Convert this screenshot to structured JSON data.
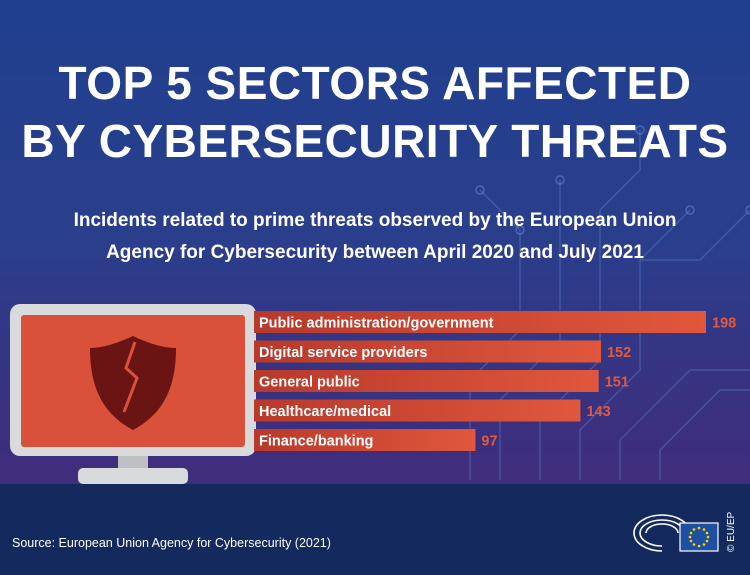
{
  "title_line1": "TOP 5 SECTORS AFFECTED",
  "title_line2": "BY CYBERSECURITY THREATS",
  "subtitle_line1": "Incidents related to prime threats observed by the European Union",
  "subtitle_line2": "Agency for Cybersecurity between April 2020 and July 2021",
  "source": "Source: European Union Agency for Cybersecurity (2021)",
  "credit": "© EU/EP",
  "icons": {
    "monitor": "computer-monitor-icon",
    "shield": "broken-shield-icon",
    "logo": "european-parliament-logo-icon"
  },
  "colors": {
    "bar": "#d9513a",
    "bar_dark": "#c0412e",
    "value_label": "#e05a3e",
    "background": "#253f8c"
  },
  "chart_data": {
    "type": "bar",
    "orientation": "horizontal",
    "categories": [
      "Public administration/government",
      "Digital service providers",
      "General public",
      "Healthcare/medical",
      "Finance/banking"
    ],
    "values": [
      198,
      152,
      151,
      143,
      97
    ],
    "title": "TOP 5 SECTORS AFFECTED BY CYBERSECURITY THREATS",
    "xlabel": "",
    "ylabel": "",
    "xlim": [
      0,
      198
    ],
    "grid": false
  }
}
